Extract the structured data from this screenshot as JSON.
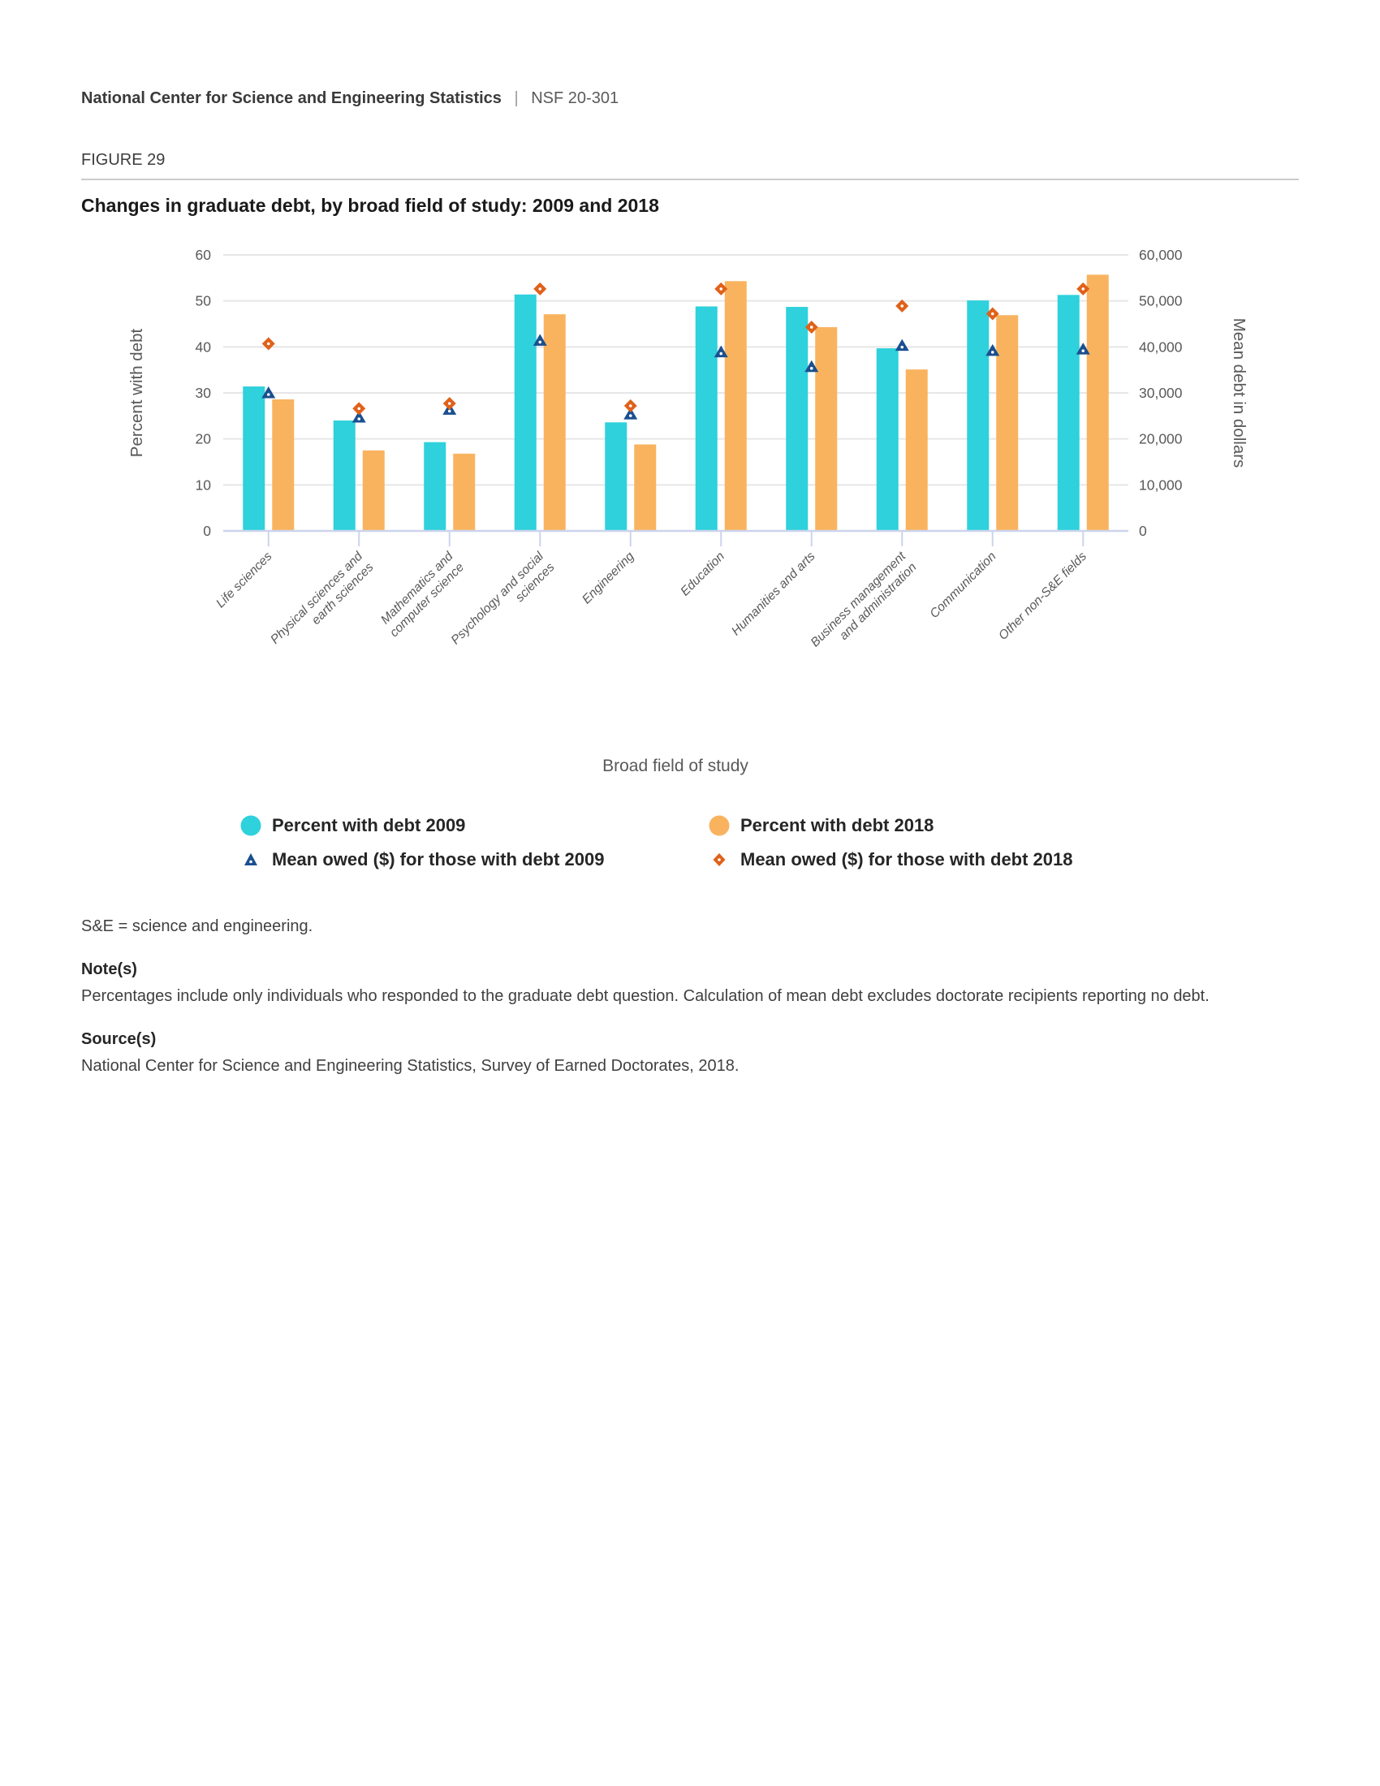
{
  "header": {
    "org": "National Center for Science and Engineering Statistics",
    "divider": "|",
    "report_id": "NSF 20-301"
  },
  "figure": {
    "label": "FIGURE 29",
    "title": "Changes in graduate debt, by broad field of study: 2009 and 2018"
  },
  "chart_data": {
    "type": "bar",
    "title": "Changes in graduate debt, by broad field of study: 2009 and 2018",
    "xlabel": "Broad field of study",
    "ylabel_left": "Percent with debt",
    "ylabel_right": "Mean debt in dollars",
    "ylim_left": [
      0,
      60
    ],
    "ylim_right": [
      0,
      60000
    ],
    "yticks_left": [
      "0",
      "10",
      "20",
      "30",
      "40",
      "50",
      "60"
    ],
    "yticks_right": [
      "0",
      "10,000",
      "20,000",
      "30,000",
      "40,000",
      "50,000",
      "60,000"
    ],
    "grid": true,
    "legend_position": "bottom",
    "categories": [
      "Life sciences",
      "Physical sciences and earth sciences",
      "Mathematics and computer science",
      "Psychology and social sciences",
      "Engineering",
      "Education",
      "Humanities and arts",
      "Business management and administration",
      "Communication",
      "Other non-S&E fields"
    ],
    "category_label_lines": [
      [
        "Life sciences"
      ],
      [
        "Physical sciences and",
        "earth sciences"
      ],
      [
        "Mathematics and",
        "computer science"
      ],
      [
        "Psychology and social",
        "sciences"
      ],
      [
        "Engineering"
      ],
      [
        "Education"
      ],
      [
        "Humanities and arts"
      ],
      [
        "Business management",
        "and administration"
      ],
      [
        "Communication"
      ],
      [
        "Other non-S&E fields"
      ]
    ],
    "series": [
      {
        "name": "Percent with debt 2009",
        "type": "bar",
        "axis": "left",
        "color": "#2ED1DC",
        "values": [
          31.4,
          24.0,
          19.3,
          51.4,
          23.6,
          48.8,
          48.7,
          39.7,
          50.1,
          51.3
        ]
      },
      {
        "name": "Percent with debt 2018",
        "type": "bar",
        "axis": "left",
        "color": "#F9B35F",
        "values": [
          28.6,
          17.5,
          16.8,
          47.1,
          18.8,
          54.3,
          44.3,
          35.1,
          46.9,
          55.7
        ]
      },
      {
        "name": "Mean owed ($) for those with debt 2009",
        "type": "point-triangle",
        "axis": "right",
        "color": "#1B4F8F",
        "values": [
          30000,
          24700,
          26400,
          41400,
          25400,
          38900,
          35700,
          40300,
          39200,
          39500
        ]
      },
      {
        "name": "Mean owed ($) for those with debt 2018",
        "type": "point-diamond",
        "axis": "right",
        "color": "#E0611A",
        "values": [
          40700,
          26600,
          27700,
          52600,
          27200,
          52600,
          44300,
          48900,
          47200,
          52600
        ]
      }
    ],
    "style": {
      "gridline_color": "#e6e6e6",
      "axis_line_color": "#ccd4ec",
      "tick_label_color": "#595959",
      "axis_title_color": "#595959"
    }
  },
  "notes": {
    "abbrev": "S&E = science and engineering.",
    "notes_heading": "Note(s)",
    "notes_text": "Percentages include only individuals who responded to the graduate debt question. Calculation of mean debt excludes doctorate recipients reporting no debt.",
    "sources_heading": "Source(s)",
    "sources_text": "National Center for Science and Engineering Statistics, Survey of Earned Doctorates, 2018."
  }
}
